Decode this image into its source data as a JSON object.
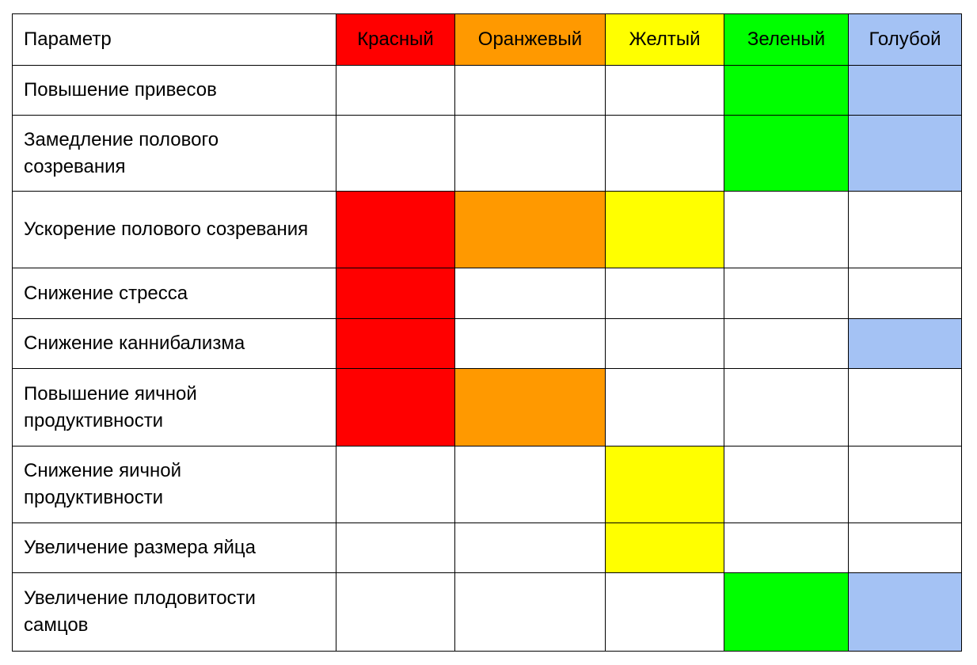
{
  "table": {
    "header": [
      "Параметр",
      "Красный",
      "Оранжевый",
      "Желтый",
      "Зеленый",
      "Голубой"
    ],
    "colors": [
      "#ff0000",
      "#ff9900",
      "#ffff00",
      "#00ff00",
      "#a4c2f4"
    ],
    "rows": [
      {
        "label": "Повышение привесов",
        "marks": [
          false,
          false,
          false,
          true,
          true
        ]
      },
      {
        "label": "Замедление полового созревания",
        "marks": [
          false,
          false,
          false,
          true,
          true
        ]
      },
      {
        "label": "Ускорение полового созревания",
        "marks": [
          true,
          true,
          true,
          false,
          false
        ]
      },
      {
        "label": "Снижение стресса",
        "marks": [
          true,
          false,
          false,
          false,
          false
        ]
      },
      {
        "label": "Снижение каннибализма",
        "marks": [
          true,
          false,
          false,
          false,
          true
        ]
      },
      {
        "label": "Повышение яичной продуктивности",
        "marks": [
          true,
          true,
          false,
          false,
          false
        ]
      },
      {
        "label": "Снижение яичной продуктивности",
        "marks": [
          false,
          false,
          true,
          false,
          false
        ]
      },
      {
        "label": "Увеличение размера яйца",
        "marks": [
          false,
          false,
          true,
          false,
          false
        ]
      },
      {
        "label": "Увеличение плодовитости самцов",
        "marks": [
          false,
          false,
          false,
          true,
          true
        ]
      }
    ]
  }
}
